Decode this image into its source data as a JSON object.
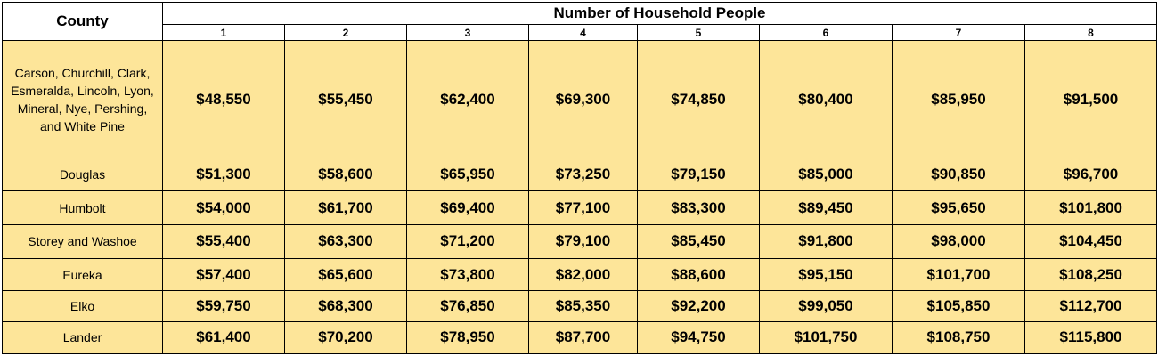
{
  "header": {
    "county_label": "County",
    "group_label": "Number of Household People",
    "household_sizes": [
      "1",
      "2",
      "3",
      "4",
      "5",
      "6",
      "7",
      "8"
    ]
  },
  "rows": [
    {
      "county": "Carson, Churchill, Clark, Esmeralda, Lincoln, Lyon, Mineral, Nye, Pershing, and White Pine",
      "values": [
        "$48,550",
        "$55,450",
        "$62,400",
        "$69,300",
        "$74,850",
        "$80,400",
        "$85,950",
        "$91,500"
      ]
    },
    {
      "county": "Douglas",
      "values": [
        "$51,300",
        "$58,600",
        "$65,950",
        "$73,250",
        "$79,150",
        "$85,000",
        "$90,850",
        "$96,700"
      ]
    },
    {
      "county": "Humbolt",
      "values": [
        "$54,000",
        "$61,700",
        "$69,400",
        "$77,100",
        "$83,300",
        "$89,450",
        "$95,650",
        "$101,800"
      ]
    },
    {
      "county": "Storey and Washoe",
      "values": [
        "$55,400",
        "$63,300",
        "$71,200",
        "$79,100",
        "$85,450",
        "$91,800",
        "$98,000",
        "$104,450"
      ]
    },
    {
      "county": "Eureka",
      "values": [
        "$57,400",
        "$65,600",
        "$73,800",
        "$82,000",
        "$88,600",
        "$95,150",
        "$101,700",
        "$108,250"
      ]
    },
    {
      "county": "Elko",
      "values": [
        "$59,750",
        "$68,300",
        "$76,850",
        "$85,350",
        "$92,200",
        "$99,050",
        "$105,850",
        "$112,700"
      ]
    },
    {
      "county": "Lander",
      "values": [
        "$61,400",
        "$70,200",
        "$78,950",
        "$87,700",
        "$94,750",
        "$101,750",
        "$108,750",
        "$115,800"
      ]
    }
  ],
  "colors": {
    "cell_fill": "#fde599",
    "header_fill": "#ffffff",
    "border": "#000000"
  }
}
